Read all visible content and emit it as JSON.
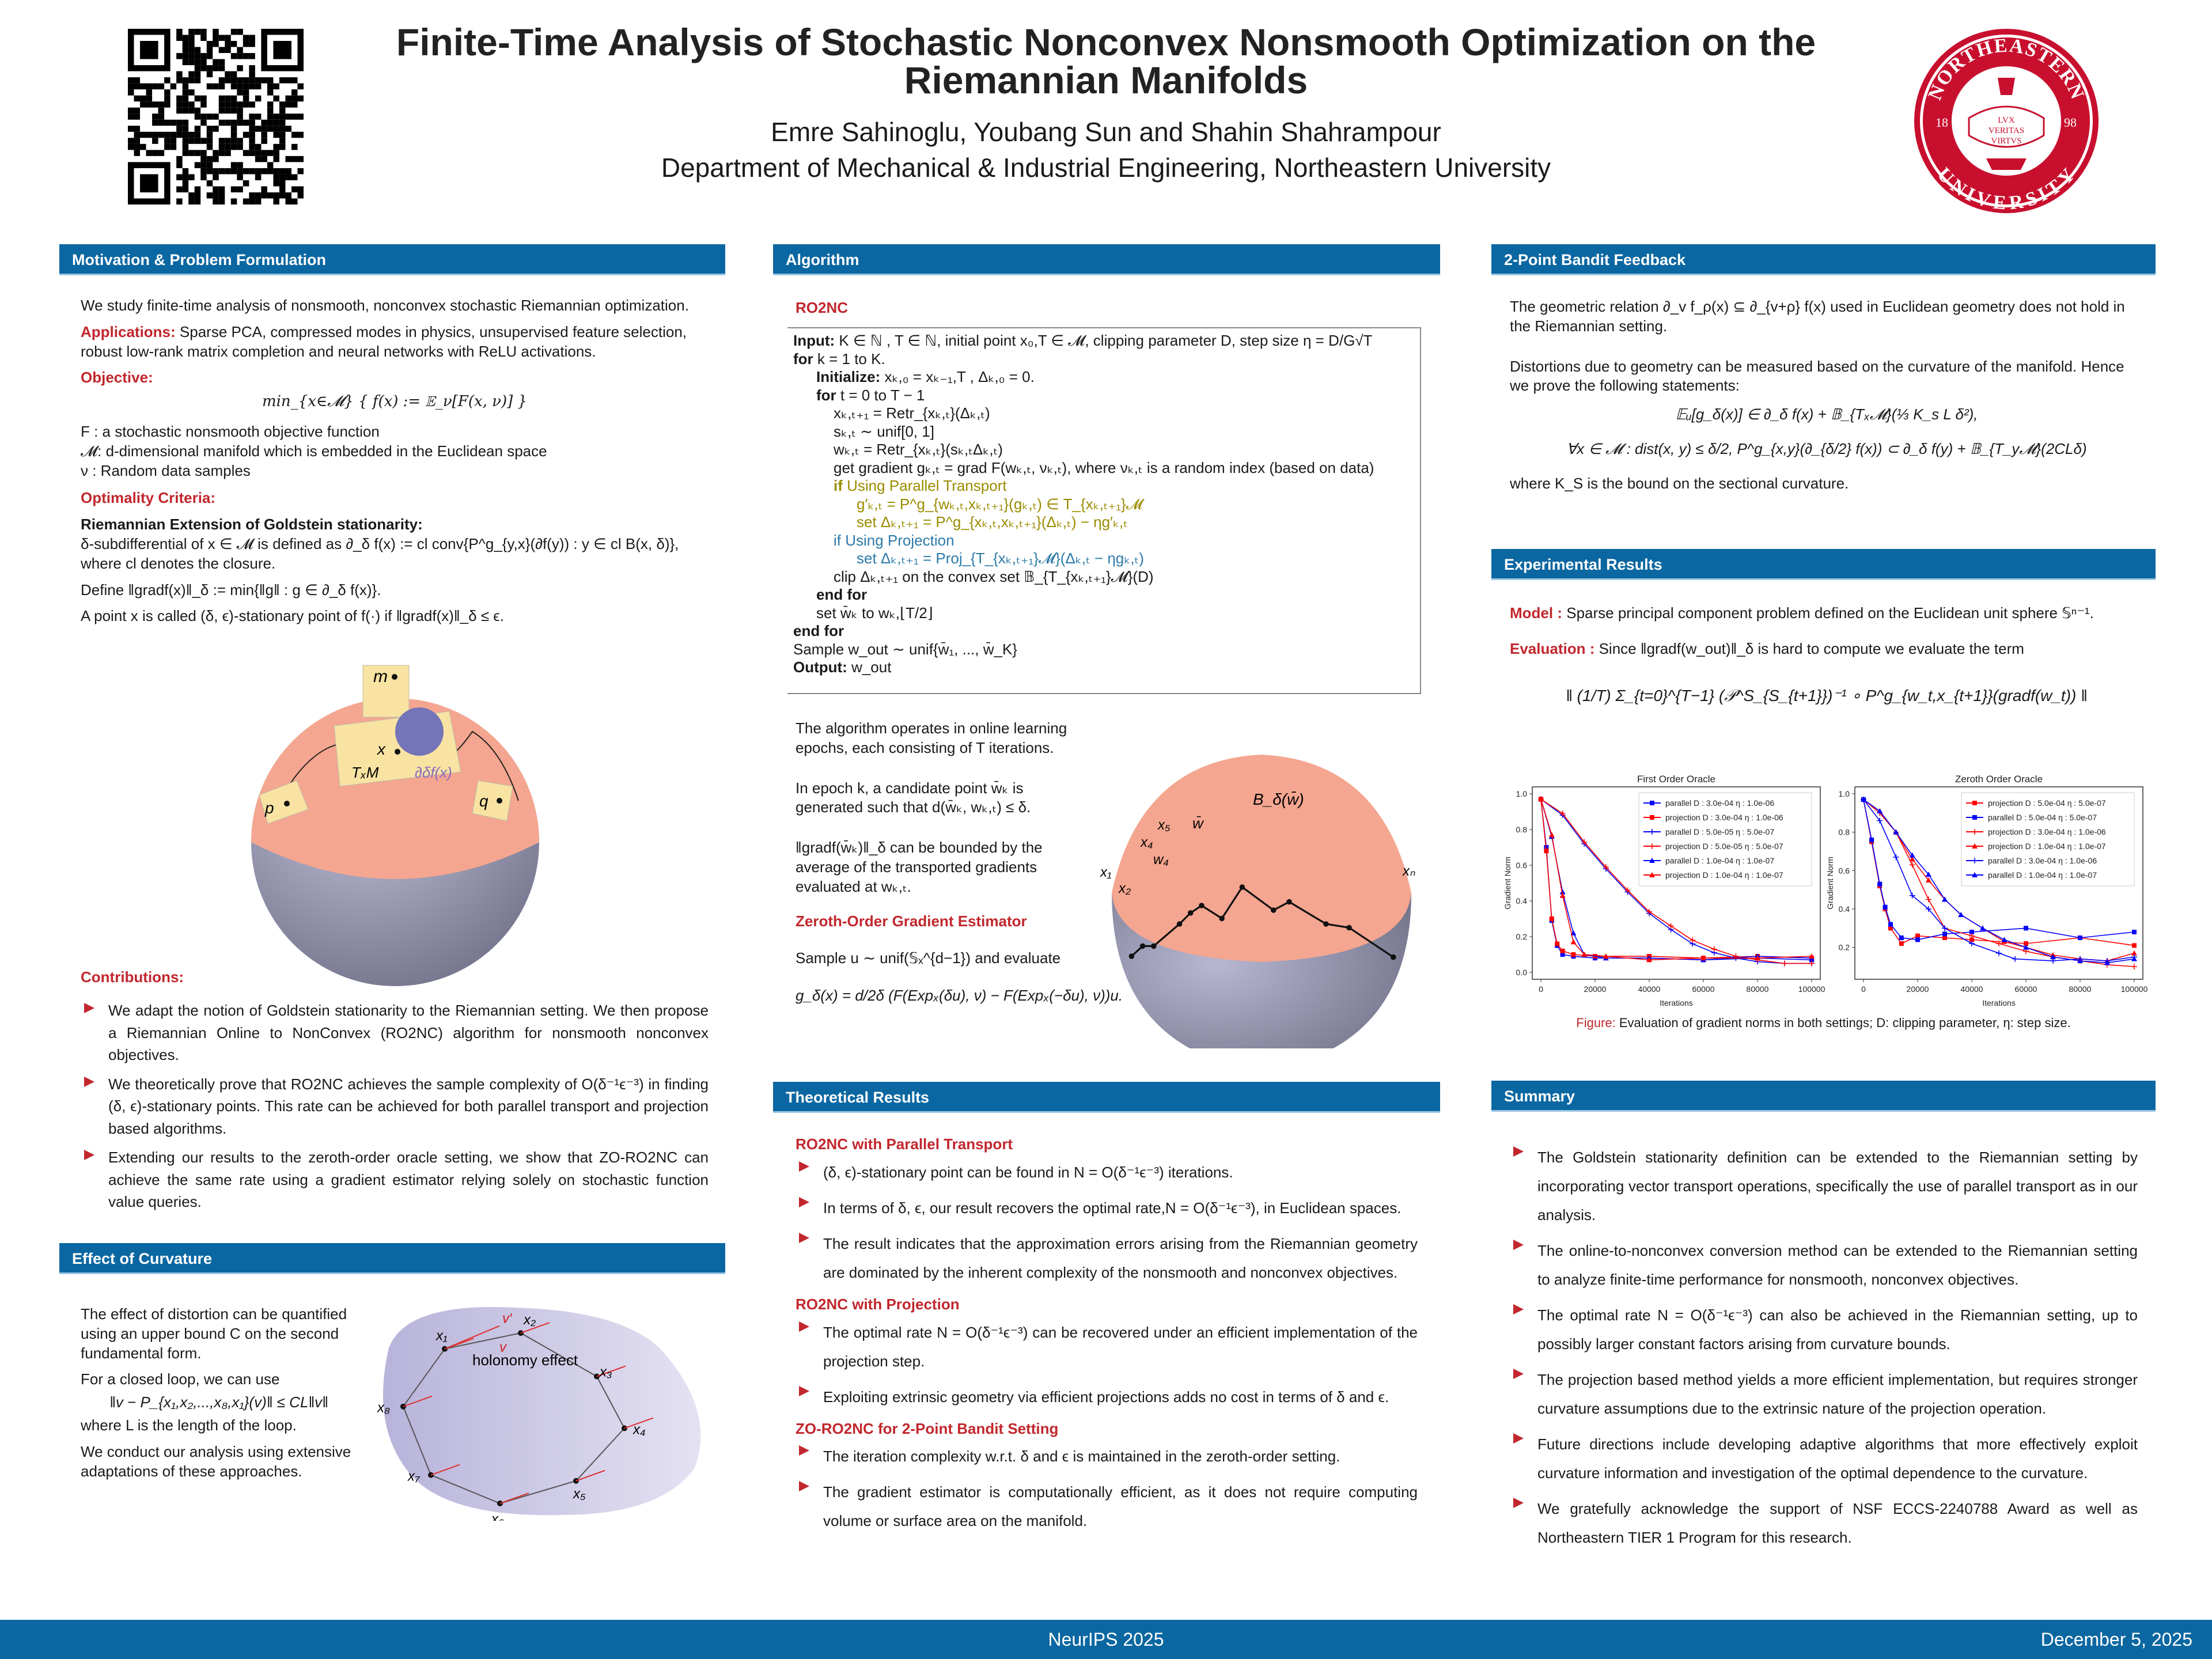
{
  "header": {
    "title_line1": "Finite-Time Analysis of Stochastic Nonconvex Nonsmooth Optimization on the",
    "title_line2": "Riemannian Manifolds",
    "authors": "Emre Sahinoglu, Youbang Sun and Shahin Shahrampour",
    "department": "Department of Mechanical & Industrial Engineering, Northeastern University",
    "seal": {
      "top_text": "NORTHEASTERN",
      "bottom_text": "UNIVERSITY",
      "left_year": "18",
      "right_year": "98",
      "motto": [
        "LVX",
        "VERITAS",
        "VIRTVS"
      ],
      "color": "#c8102e"
    },
    "qr_icon": "qr-code"
  },
  "colors": {
    "section_header": "#0b67a1",
    "accent_red": "#c1272d",
    "parallel_transport": "#9a8c00",
    "projection": "#2c7aa8",
    "cap": "#f5a690",
    "sphere": "#9c9cba"
  },
  "motivation": {
    "heading": "Motivation & Problem Formulation",
    "intro": "We study finite-time analysis of nonsmooth, nonconvex stochastic Riemannian optimization.",
    "applications_label": "Applications:",
    "applications_text": " Sparse PCA, compressed modes in physics, unsupervised feature selection, robust low-rank matrix completion and neural networks with ReLU activations.",
    "objective_label": "Objective:",
    "objective_formula": "min_{x∈𝓜} { f(x) := 𝔼_ν[F(x, ν)] }",
    "defs": [
      "F : a stochastic nonsmooth objective function",
      "𝓜: d-dimensional manifold which is embedded in the Euclidean space",
      "ν : Random data samples"
    ],
    "optimality_label": "Optimality Criteria:",
    "goldstein_title": "Riemannian Extension of Goldstein stationarity:",
    "goldstein_text": "δ-subdifferential of x ∈ 𝓜 is defined as ∂_δ f(x) := cl conv{P^g_{y,x}(∂f(y)) : y ∈ cl B(x, δ)}, where cl denotes the closure.",
    "define_text": "Define ‖gradf(x)‖_δ := min{‖g‖ : g ∈ ∂_δ f(x)}.",
    "stationary_text": "A point x is called (δ, ϵ)-stationary point of f(·) if ‖gradf(x)‖_δ ≤ ϵ.",
    "figure_labels": {
      "m": "m",
      "x": "x",
      "p": "p",
      "q": "q",
      "txm": "TₓM",
      "subdiff": "∂δf(x)"
    },
    "contributions_label": "Contributions:",
    "contributions": [
      "We adapt the notion of Goldstein stationarity to the Riemannian setting.  We then propose a Riemannian Online to NonConvex (RO2NC) algorithm for nonsmooth nonconvex objectives.",
      "We theoretically prove that RO2NC achieves the sample complexity of O(δ⁻¹ϵ⁻³) in finding (δ, ϵ)-stationary points. This rate can be achieved for both parallel transport and projection based algorithms.",
      "Extending our results to the zeroth-order oracle setting, we show that ZO-RO2NC can achieve the same rate using a gradient estimator relying solely on stochastic function value queries."
    ]
  },
  "curvature": {
    "heading": "Effect of Curvature",
    "p1": "The effect of distortion can be quantified using an upper bound C on the second fundamental form.",
    "p2": "For a closed loop, we can use",
    "formula": "‖v − P_{x₁,x₂,...,x₈,x₁}(v)‖ ≤ CL‖v‖",
    "p3": "where L is the length of the loop.",
    "p4": "We conduct our analysis using extensive adaptations of these approaches.",
    "figure_labels": {
      "holonomy": "holonomy effect",
      "v": "v",
      "vprime": "v′",
      "points": [
        "x₁",
        "x₂",
        "x₃",
        "x₄",
        "x₅",
        "x₆",
        "x₇",
        "x₈"
      ]
    }
  },
  "algorithm": {
    "heading": "Algorithm",
    "name": "RO2NC",
    "lines": [
      {
        "bold": "Input:",
        "text": " K ∈ ℕ , T ∈ ℕ, initial point x₀,T ∈ 𝓜, clipping parameter D, step size η = D/G√T",
        "indent": 0
      },
      {
        "bold": "for",
        "text": " k = 1 to K.",
        "indent": 0
      },
      {
        "bold": "Initialize:",
        "text": " xₖ,₀ = xₖ₋₁,T , Δₖ,₀ = 0.",
        "indent": 1
      },
      {
        "bold": "for",
        "text": " t = 0 to T − 1",
        "indent": 1
      },
      {
        "bold": "",
        "text": "xₖ,ₜ₊₁ = Retr_{xₖ,ₜ}(Δₖ,ₜ)",
        "indent": 2
      },
      {
        "bold": "",
        "text": "sₖ,ₜ ∼ unif[0, 1]",
        "indent": 2
      },
      {
        "bold": "",
        "text": "wₖ,ₜ = Retr_{xₖ,ₜ}(sₖ,ₜΔₖ,ₜ)",
        "indent": 2
      },
      {
        "bold": "",
        "text": "get gradient gₖ,ₜ = grad F(wₖ,ₜ, νₖ,ₜ), where νₖ,ₜ is a random index (based on data)",
        "indent": 2
      },
      {
        "bold": "if",
        "text": "  Using Parallel Transport",
        "indent": 2,
        "color": "olive"
      },
      {
        "bold": "",
        "text": "g′ₖ,ₜ = P^g_{wₖ,ₜ,xₖ,ₜ₊₁}(gₖ,ₜ) ∈ T_{xₖ,ₜ₊₁}𝓜",
        "indent": 3,
        "color": "olive"
      },
      {
        "bold": "",
        "text": "set Δₖ,ₜ₊₁ = P^g_{xₖ,ₜ,xₖ,ₜ₊₁}(Δₖ,ₜ) − ηg′ₖ,ₜ",
        "indent": 3,
        "color": "olive"
      },
      {
        "bold": "",
        "text": "if Using Projection",
        "indent": 2,
        "color": "proj"
      },
      {
        "bold": "",
        "text": "set Δₖ,ₜ₊₁ = Proj_{T_{xₖ,ₜ₊₁}𝓜}(Δₖ,ₜ − ηgₖ,ₜ)",
        "indent": 3,
        "color": "proj"
      },
      {
        "bold": "",
        "text": "clip Δₖ,ₜ₊₁ on the convex set 𝔹_{T_{xₖ,ₜ₊₁}𝓜}(D)",
        "indent": 2
      },
      {
        "bold": "end for",
        "text": "",
        "indent": 1
      },
      {
        "bold": "",
        "text": "set w̄ₖ to wₖ,⌊T/2⌋",
        "indent": 1
      },
      {
        "bold": "end for",
        "text": "",
        "indent": 0
      },
      {
        "bold": "",
        "text": "Sample w_out ∼ unif{w̄₁, ..., w̄_K}",
        "indent": 0
      },
      {
        "bold": "Output:",
        "text": " w_out",
        "indent": 0
      }
    ],
    "desc": [
      "The algorithm operates in online learning epochs, each consisting of T iterations.",
      "In epoch k, a candidate point w̄ₖ is generated such that d(w̄ₖ, wₖ,ₜ) ≤ δ.",
      "‖gradf(w̄ₖ)‖_δ can be bounded by the average of the transported gradients evaluated at wₖ,ₜ."
    ],
    "figure_labels": {
      "ball": "B_δ(w̄)",
      "wbar": "w̄",
      "x1": "x₁",
      "x2": "x₂",
      "x4": "x₄",
      "w4": "w₄",
      "x5": "x₅",
      "xn": "xₙ"
    },
    "zo_heading": "Zeroth-Order Gradient Estimator",
    "zo_text": "Sample u ∼ unif(𝕊ₓ^{d−1}) and evaluate",
    "zo_formula": "g_δ(x) = d/2δ (F(Expₓ(δu), ν) − F(Expₓ(−δu), ν))u."
  },
  "theory": {
    "heading": "Theoretical Results",
    "groups": [
      {
        "title": "RO2NC with Parallel Transport",
        "items": [
          "(δ, ϵ)-stationary point can be found in N = O(δ⁻¹ϵ⁻³) iterations.",
          "In terms of δ, ϵ, our result recovers the optimal rate,N = O(δ⁻¹ϵ⁻³), in Euclidean spaces.",
          "The result indicates that the approximation errors arising from the Riemannian geometry are dominated by the inherent complexity of the nonsmooth and nonconvex objectives."
        ]
      },
      {
        "title": "RO2NC with Projection",
        "items": [
          "The optimal rate N = O(δ⁻¹ϵ⁻³) can be recovered under an efficient implementation of the projection step.",
          "Exploiting extrinsic geometry via efficient projections adds no cost in terms of δ and ϵ."
        ]
      },
      {
        "title": "ZO-RO2NC for 2-Point Bandit Setting",
        "items": [
          "The iteration complexity w.r.t. δ and ϵ is maintained in the zeroth-order setting.",
          "The gradient estimator is computationally efficient, as it does not require computing volume or surface area on the manifold."
        ]
      }
    ]
  },
  "bandit": {
    "heading": "2-Point Bandit Feedback",
    "p1": "The geometric relation ∂_v f_ρ(x) ⊆ ∂_{v+ρ} f(x) used in Euclidean geometry does not hold in the Riemannian setting.",
    "p2": "Distortions due to geometry can be measured based on the curvature of the manifold. Hence we prove the following statements:",
    "eq1": "𝔼ᵤ[g_δ(x)] ∈ ∂_δ f(x) + 𝔹_{Tₓ𝓜}(⅓ K_s L δ²),",
    "eq2": "∀x ∈ 𝓜 : dist(x, y) ≤ δ/2,    P^g_{x,y}(∂_{δ/2} f(x)) ⊂ ∂_δ f(y) + 𝔹_{T_y𝓜}(2CLδ)",
    "p3": "where K_S is the bound on the sectional curvature."
  },
  "experiments": {
    "heading": "Experimental Results",
    "model_label": "Model :",
    "model_text": " Sparse principal component problem defined on the Euclidean unit sphere 𝕊ⁿ⁻¹.",
    "eval_label": "Evaluation :",
    "eval_text": " Since ‖gradf(w_out)‖_δ is hard to compute we evaluate the term",
    "eval_formula": "‖ (1/T) Σ_{t=0}^{T−1} (𝒫^S_{S_{t+1}})⁻¹ ∘ P^g_{w_t,x_{t+1}}(gradf(w_t)) ‖",
    "caption_label": "Figure:",
    "caption_text": " Evaluation of gradient norms in both settings; D: clipping parameter, η: step size."
  },
  "chart_data": [
    {
      "type": "line",
      "title": "First Order Oracle",
      "xlabel": "Iterations",
      "ylabel": "Gradient Norm",
      "xlim": [
        0,
        100000
      ],
      "ylim": [
        0,
        1.0
      ],
      "xticks": [
        0,
        20000,
        40000,
        60000,
        80000,
        100000
      ],
      "yticks": [
        0.0,
        0.2,
        0.4,
        0.6,
        0.8,
        1.0
      ],
      "legend": "top-right",
      "series": [
        {
          "name": "parallel D : 3.0e-04 η : 1.0e-06",
          "color": "#0000ff",
          "marker": "square",
          "x": [
            0,
            2000,
            4000,
            6000,
            8000,
            12000,
            20000,
            40000,
            60000,
            80000,
            100000
          ],
          "y": [
            0.97,
            0.7,
            0.29,
            0.15,
            0.1,
            0.09,
            0.08,
            0.08,
            0.07,
            0.08,
            0.07
          ]
        },
        {
          "name": "projection D : 3.0e-04 η : 1.0e-06",
          "color": "#ff0000",
          "marker": "square",
          "x": [
            0,
            2000,
            4000,
            6000,
            8000,
            12000,
            20000,
            40000,
            60000,
            80000,
            100000
          ],
          "y": [
            0.97,
            0.68,
            0.3,
            0.16,
            0.12,
            0.1,
            0.09,
            0.09,
            0.08,
            0.09,
            0.08
          ]
        },
        {
          "name": "parallel D : 5.0e-05 η : 5.0e-07",
          "color": "#0000ff",
          "marker": "plus",
          "x": [
            0,
            8000,
            16000,
            24000,
            32000,
            40000,
            48000,
            56000,
            64000,
            72000,
            80000,
            90000,
            100000
          ],
          "y": [
            0.97,
            0.88,
            0.72,
            0.58,
            0.45,
            0.33,
            0.24,
            0.16,
            0.11,
            0.08,
            0.06,
            0.05,
            0.05
          ]
        },
        {
          "name": "projection D : 5.0e-05 η : 5.0e-07",
          "color": "#ff0000",
          "marker": "plus",
          "x": [
            0,
            8000,
            16000,
            24000,
            32000,
            40000,
            48000,
            56000,
            64000,
            72000,
            80000,
            90000,
            100000
          ],
          "y": [
            0.97,
            0.89,
            0.73,
            0.59,
            0.46,
            0.34,
            0.26,
            0.18,
            0.13,
            0.09,
            0.07,
            0.05,
            0.05
          ]
        },
        {
          "name": "parallel D : 1.0e-04 η : 1.0e-07",
          "color": "#0000ff",
          "marker": "triangle",
          "x": [
            0,
            4000,
            8000,
            12000,
            16000,
            24000,
            40000,
            60000,
            80000,
            100000
          ],
          "y": [
            0.97,
            0.76,
            0.45,
            0.22,
            0.1,
            0.08,
            0.08,
            0.07,
            0.09,
            0.08
          ]
        },
        {
          "name": "projection D : 1.0e-04 η : 1.0e-07",
          "color": "#ff0000",
          "marker": "triangle",
          "x": [
            0,
            4000,
            8000,
            12000,
            16000,
            24000,
            40000,
            60000,
            80000,
            100000
          ],
          "y": [
            0.97,
            0.77,
            0.43,
            0.17,
            0.1,
            0.09,
            0.07,
            0.08,
            0.08,
            0.09
          ]
        }
      ]
    },
    {
      "type": "line",
      "title": "Zeroth Order Oracle",
      "xlabel": "Iterations",
      "ylabel": "Gradient Norm",
      "xlim": [
        0,
        100000
      ],
      "ylim": [
        0.07,
        1.0
      ],
      "xticks": [
        0,
        20000,
        40000,
        60000,
        80000,
        100000
      ],
      "yticks": [
        0.2,
        0.4,
        0.6,
        0.8,
        1.0
      ],
      "legend": "top-right",
      "series": [
        {
          "name": "projection D : 5.0e-04 η : 5.0e-07",
          "color": "#ff0000",
          "marker": "square",
          "x": [
            0,
            3000,
            6000,
            8000,
            10000,
            14000,
            20000,
            30000,
            40000,
            60000,
            80000,
            100000
          ],
          "y": [
            0.97,
            0.75,
            0.52,
            0.4,
            0.3,
            0.22,
            0.26,
            0.25,
            0.24,
            0.22,
            0.25,
            0.21
          ]
        },
        {
          "name": "parallel D : 5.0e-04 η : 5.0e-07",
          "color": "#0000ff",
          "marker": "square",
          "x": [
            0,
            3000,
            6000,
            8000,
            10000,
            14000,
            20000,
            30000,
            40000,
            60000,
            80000,
            100000
          ],
          "y": [
            0.97,
            0.76,
            0.53,
            0.41,
            0.32,
            0.25,
            0.24,
            0.27,
            0.28,
            0.3,
            0.25,
            0.28
          ]
        },
        {
          "name": "projection D : 3.0e-04 η : 1.0e-06",
          "color": "#ff0000",
          "marker": "plus",
          "x": [
            0,
            6000,
            12000,
            18000,
            24000,
            30000,
            40000,
            50000,
            60000,
            70000,
            80000,
            90000,
            100000
          ],
          "y": [
            0.97,
            0.9,
            0.8,
            0.63,
            0.45,
            0.3,
            0.26,
            0.22,
            0.18,
            0.15,
            0.13,
            0.11,
            0.1
          ]
        },
        {
          "name": "projection D : 1.0e-04 η : 1.0e-07",
          "color": "#ff0000",
          "marker": "triangle",
          "x": [
            0,
            6000,
            12000,
            18000,
            24000,
            30000,
            36000,
            44000,
            52000,
            60000,
            70000,
            80000,
            90000,
            100000
          ],
          "y": [
            0.97,
            0.91,
            0.8,
            0.66,
            0.55,
            0.45,
            0.37,
            0.3,
            0.23,
            0.2,
            0.16,
            0.14,
            0.13,
            0.17
          ]
        },
        {
          "name": "parallel D : 3.0e-04 η : 1.0e-06",
          "color": "#0000ff",
          "marker": "plus",
          "x": [
            0,
            6000,
            12000,
            18000,
            24000,
            30000,
            40000,
            50000,
            56000,
            70000,
            80000,
            90000,
            100000
          ],
          "y": [
            0.97,
            0.86,
            0.67,
            0.47,
            0.4,
            0.3,
            0.22,
            0.17,
            0.14,
            0.13,
            0.14,
            0.13,
            0.15
          ]
        },
        {
          "name": "parallel D : 1.0e-04 η : 1.0e-07",
          "color": "#0000ff",
          "marker": "triangle",
          "x": [
            0,
            6000,
            12000,
            18000,
            24000,
            30000,
            36000,
            44000,
            52000,
            60000,
            70000,
            80000,
            90000,
            100000
          ],
          "y": [
            0.97,
            0.91,
            0.8,
            0.68,
            0.58,
            0.45,
            0.37,
            0.3,
            0.24,
            0.2,
            0.15,
            0.13,
            0.12,
            0.14
          ]
        }
      ]
    }
  ],
  "summary": {
    "heading": "Summary",
    "items": [
      "The Goldstein stationarity definition can be extended to the Riemannian setting by incorporating vector transport operations, specifically the use of parallel transport as in our analysis.",
      "The online-to-nonconvex conversion method can be extended to the Riemannian setting to analyze finite-time performance for nonsmooth, nonconvex objectives.",
      "The optimal rate N = O(δ⁻¹ϵ⁻³) can also be achieved in the Riemannian setting, up to possibly larger constant factors arising from curvature bounds.",
      "The projection based method yields a more efficient implementation, but requires stronger curvature assumptions due to the extrinsic nature of the projection operation.",
      "Future directions include developing adaptive algorithms that more effectively exploit curvature information and investigation of the optimal dependence to the curvature.",
      "We gratefully acknowledge the support of NSF ECCS-2240788 Award as well as Northeastern TIER 1 Program for this research."
    ]
  },
  "footer": {
    "conference": "NeurIPS 2025",
    "date": "December 5, 2025"
  }
}
